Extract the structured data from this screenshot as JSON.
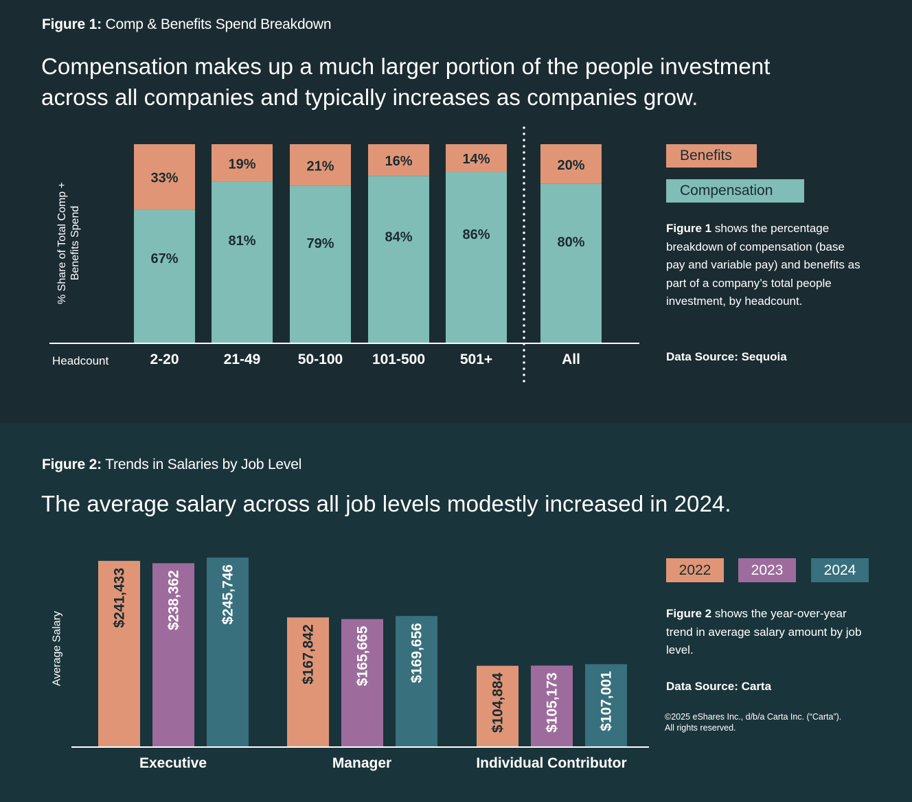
{
  "colors": {
    "bg_top": "#1b2b32",
    "bg_bottom": "#1a343b",
    "benefits": "#e09676",
    "compensation": "#80bdb7",
    "year_2022": "#e09676",
    "year_2023": "#9d6c9c",
    "year_2024": "#38707d",
    "label_dark": "#1b2b32",
    "label_light": "#ffffff"
  },
  "figure1": {
    "label_bold": "Figure 1:",
    "label_rest": " Comp & Benefits Spend Breakdown",
    "headline_line1": "Compensation makes up a much larger portion of the people investment",
    "headline_line2": "across all companies and typically increases as companies grow.",
    "ylabel_line1": "% Share of Total Comp +",
    "ylabel_line2": "Benefits Spend",
    "xlabel": "Headcount",
    "legend": {
      "benefits": "Benefits",
      "compensation": "Compensation"
    },
    "note_bold": "Figure 1",
    "note_rest": " shows the percentage breakdown of compensation (base pay and variable pay) and benefits as part of a company’s total people investment, by headcount.",
    "source": "Data Source: Sequoia"
  },
  "figure2": {
    "label_bold": "Figure 2:",
    "label_rest": " Trends in Salaries by Job Level",
    "headline": "The average salary across all job levels modestly increased in 2024.",
    "ylabel": "Average Salary",
    "legend": [
      "2022",
      "2023",
      "2024"
    ],
    "note_bold": "Figure 2",
    "note_rest": " shows the year-over-year trend in average salary amount by job level.",
    "source": "Data Source: Carta",
    "copyright_line1": "©2025 eShares Inc., d/b/a Carta Inc. (“Carta”).",
    "copyright_line2": "All rights reserved."
  },
  "chart_data": [
    {
      "type": "bar",
      "stacked": true,
      "title": "Comp & Benefits Spend Breakdown",
      "xlabel": "Headcount",
      "ylabel": "% Share of Total Comp + Benefits Spend",
      "ylim": [
        0,
        100
      ],
      "categories": [
        "2-20",
        "21-49",
        "50-100",
        "101-500",
        "501+",
        "All"
      ],
      "separator_before": "All",
      "series": [
        {
          "name": "Compensation",
          "values": [
            67,
            81,
            79,
            84,
            86,
            80
          ],
          "labels": [
            "67%",
            "81%",
            "79%",
            "84%",
            "86%",
            "80%"
          ]
        },
        {
          "name": "Benefits",
          "values": [
            33,
            19,
            21,
            16,
            14,
            20
          ],
          "labels": [
            "33%",
            "19%",
            "21%",
            "16%",
            "14%",
            "20%"
          ]
        }
      ],
      "legend": "right",
      "grid": false
    },
    {
      "type": "bar",
      "stacked": false,
      "title": "Trends in Salaries by Job Level",
      "xlabel": "",
      "ylabel": "Average Salary",
      "ylim": [
        0,
        255000
      ],
      "categories": [
        "Executive",
        "Manager",
        "Individual Contributor"
      ],
      "series": [
        {
          "name": "2022",
          "values": [
            241433,
            167842,
            104884
          ],
          "labels": [
            "$241,433",
            "$167,842",
            "$104,884"
          ]
        },
        {
          "name": "2023",
          "values": [
            238362,
            165665,
            105173
          ],
          "labels": [
            "$238,362",
            "$165,665",
            "$105,173"
          ]
        },
        {
          "name": "2024",
          "values": [
            245746,
            169656,
            107001
          ],
          "labels": [
            "$245,746",
            "$169,656",
            "$107,001"
          ]
        }
      ],
      "legend": "right",
      "grid": false
    }
  ]
}
